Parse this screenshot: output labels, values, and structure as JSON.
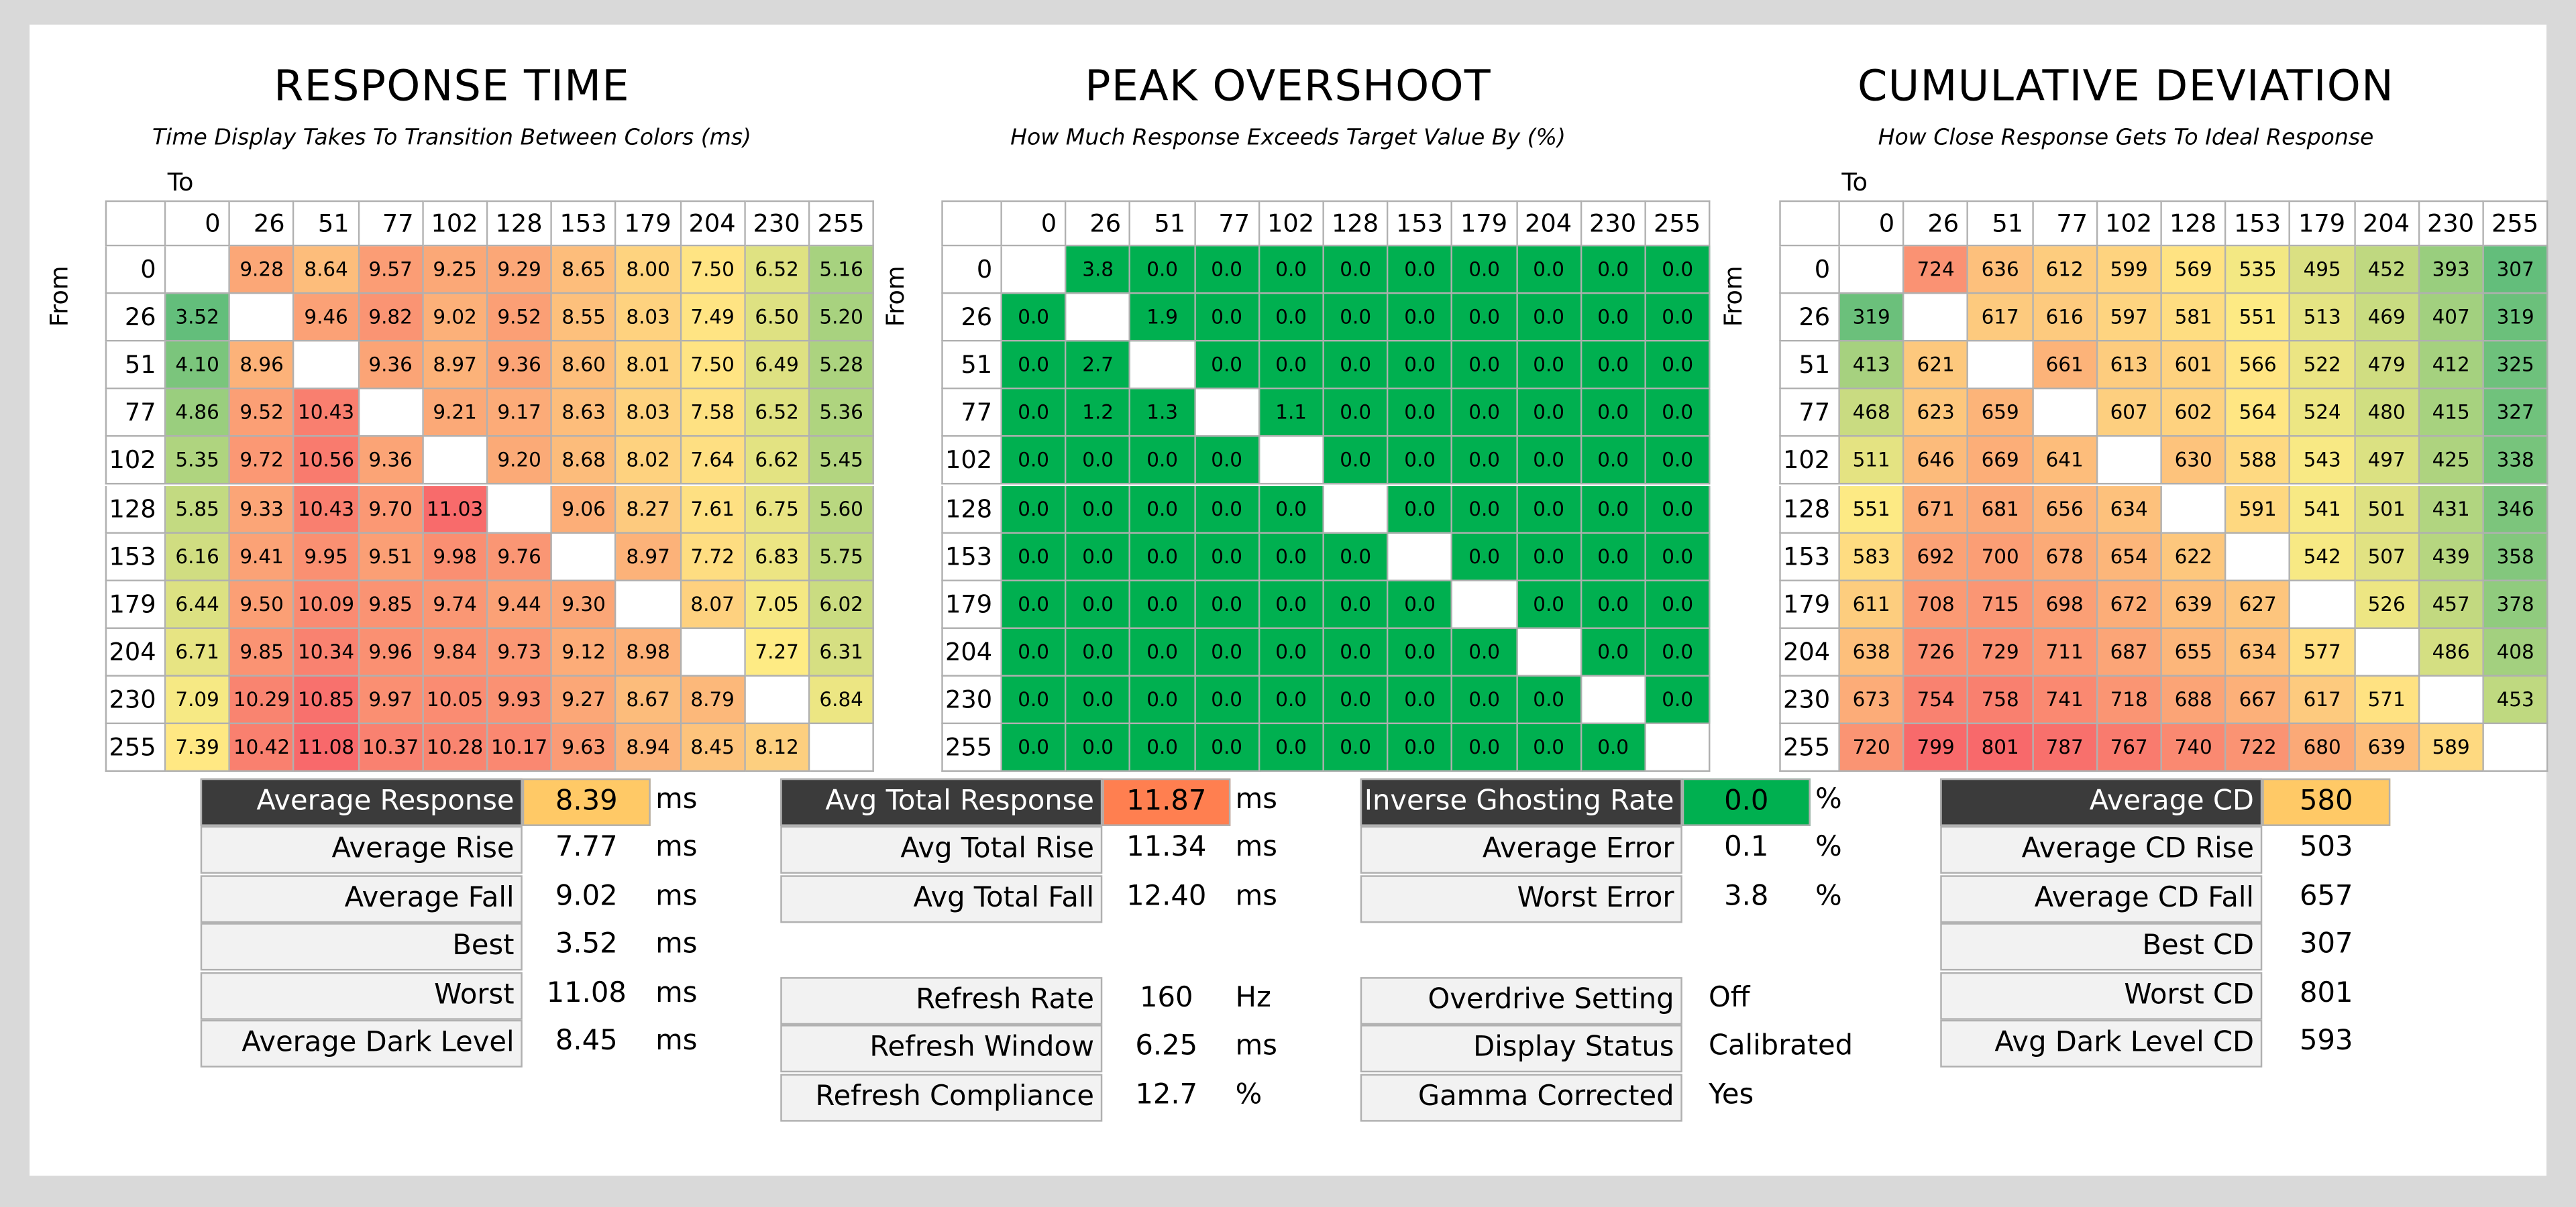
{
  "chart_data": [
    {
      "type": "heatmap",
      "title": "RESPONSE TIME",
      "subtitle": "Time Display Takes To Transition Between Colors (ms)",
      "xlabel": "To",
      "ylabel": "From",
      "x_categories": [
        "0",
        "26",
        "51",
        "77",
        "102",
        "128",
        "153",
        "179",
        "204",
        "230",
        "255"
      ],
      "y_categories": [
        "0",
        "26",
        "51",
        "77",
        "102",
        "128",
        "153",
        "179",
        "204",
        "230",
        "255"
      ],
      "values": [
        [
          null,
          "9.28",
          "8.64",
          "9.57",
          "9.25",
          "9.29",
          "8.65",
          "8.00",
          "7.50",
          "6.52",
          "5.16"
        ],
        [
          "3.52",
          null,
          "9.46",
          "9.82",
          "9.02",
          "9.52",
          "8.55",
          "8.03",
          "7.49",
          "6.50",
          "5.20"
        ],
        [
          "4.10",
          "8.96",
          null,
          "9.36",
          "8.97",
          "9.36",
          "8.60",
          "8.01",
          "7.50",
          "6.49",
          "5.28"
        ],
        [
          "4.86",
          "9.52",
          "10.43",
          null,
          "9.21",
          "9.17",
          "8.63",
          "8.03",
          "7.58",
          "6.52",
          "5.36"
        ],
        [
          "5.35",
          "9.72",
          "10.56",
          "9.36",
          null,
          "9.20",
          "8.68",
          "8.02",
          "7.64",
          "6.62",
          "5.45"
        ],
        [
          "5.85",
          "9.33",
          "10.43",
          "9.70",
          "11.03",
          null,
          "9.06",
          "8.27",
          "7.61",
          "6.75",
          "5.60"
        ],
        [
          "6.16",
          "9.41",
          "9.95",
          "9.51",
          "9.98",
          "9.76",
          null,
          "8.97",
          "7.72",
          "6.83",
          "5.75"
        ],
        [
          "6.44",
          "9.50",
          "10.09",
          "9.85",
          "9.74",
          "9.44",
          "9.30",
          null,
          "8.07",
          "7.05",
          "6.02"
        ],
        [
          "6.71",
          "9.85",
          "10.34",
          "9.96",
          "9.84",
          "9.73",
          "9.12",
          "8.98",
          null,
          "7.27",
          "6.31"
        ],
        [
          "7.09",
          "10.29",
          "10.85",
          "9.97",
          "10.05",
          "9.93",
          "9.27",
          "8.67",
          "8.79",
          null,
          "6.84"
        ],
        [
          "7.39",
          "10.42",
          "11.08",
          "10.37",
          "10.28",
          "10.17",
          "9.63",
          "8.94",
          "8.45",
          "8.12",
          null
        ]
      ],
      "color_min": 3.52,
      "color_max": 11.08
    },
    {
      "type": "heatmap",
      "title": "PEAK OVERSHOOT",
      "subtitle": "How Much Response Exceeds Target Value By (%)",
      "xlabel": "",
      "ylabel": "From",
      "x_categories": [
        "0",
        "26",
        "51",
        "77",
        "102",
        "128",
        "153",
        "179",
        "204",
        "230",
        "255"
      ],
      "y_categories": [
        "0",
        "26",
        "51",
        "77",
        "102",
        "128",
        "153",
        "179",
        "204",
        "230",
        "255"
      ],
      "values": [
        [
          null,
          "3.8",
          "0.0",
          "0.0",
          "0.0",
          "0.0",
          "0.0",
          "0.0",
          "0.0",
          "0.0",
          "0.0"
        ],
        [
          "0.0",
          null,
          "1.9",
          "0.0",
          "0.0",
          "0.0",
          "0.0",
          "0.0",
          "0.0",
          "0.0",
          "0.0"
        ],
        [
          "0.0",
          "2.7",
          null,
          "0.0",
          "0.0",
          "0.0",
          "0.0",
          "0.0",
          "0.0",
          "0.0",
          "0.0"
        ],
        [
          "0.0",
          "1.2",
          "1.3",
          null,
          "1.1",
          "0.0",
          "0.0",
          "0.0",
          "0.0",
          "0.0",
          "0.0"
        ],
        [
          "0.0",
          "0.0",
          "0.0",
          "0.0",
          null,
          "0.0",
          "0.0",
          "0.0",
          "0.0",
          "0.0",
          "0.0"
        ],
        [
          "0.0",
          "0.0",
          "0.0",
          "0.0",
          "0.0",
          null,
          "0.0",
          "0.0",
          "0.0",
          "0.0",
          "0.0"
        ],
        [
          "0.0",
          "0.0",
          "0.0",
          "0.0",
          "0.0",
          "0.0",
          null,
          "0.0",
          "0.0",
          "0.0",
          "0.0"
        ],
        [
          "0.0",
          "0.0",
          "0.0",
          "0.0",
          "0.0",
          "0.0",
          "0.0",
          null,
          "0.0",
          "0.0",
          "0.0"
        ],
        [
          "0.0",
          "0.0",
          "0.0",
          "0.0",
          "0.0",
          "0.0",
          "0.0",
          "0.0",
          null,
          "0.0",
          "0.0"
        ],
        [
          "0.0",
          "0.0",
          "0.0",
          "0.0",
          "0.0",
          "0.0",
          "0.0",
          "0.0",
          "0.0",
          null,
          "0.0"
        ],
        [
          "0.0",
          "0.0",
          "0.0",
          "0.0",
          "0.0",
          "0.0",
          "0.0",
          "0.0",
          "0.0",
          "0.0",
          null
        ]
      ],
      "uniform_color": "#00b050"
    },
    {
      "type": "heatmap",
      "title": "CUMULATIVE DEVIATION",
      "subtitle": "How Close Response Gets To Ideal Response",
      "xlabel": "To",
      "ylabel": "From",
      "x_categories": [
        "0",
        "26",
        "51",
        "77",
        "102",
        "128",
        "153",
        "179",
        "204",
        "230",
        "255"
      ],
      "y_categories": [
        "0",
        "26",
        "51",
        "77",
        "102",
        "128",
        "153",
        "179",
        "204",
        "230",
        "255"
      ],
      "values": [
        [
          null,
          "724",
          "636",
          "612",
          "599",
          "569",
          "535",
          "495",
          "452",
          "393",
          "307"
        ],
        [
          "319",
          null,
          "617",
          "616",
          "597",
          "581",
          "551",
          "513",
          "469",
          "407",
          "319"
        ],
        [
          "413",
          "621",
          null,
          "661",
          "613",
          "601",
          "566",
          "522",
          "479",
          "412",
          "325"
        ],
        [
          "468",
          "623",
          "659",
          null,
          "607",
          "602",
          "564",
          "524",
          "480",
          "415",
          "327"
        ],
        [
          "511",
          "646",
          "669",
          "641",
          null,
          "630",
          "588",
          "543",
          "497",
          "425",
          "338"
        ],
        [
          "551",
          "671",
          "681",
          "656",
          "634",
          null,
          "591",
          "541",
          "501",
          "431",
          "346"
        ],
        [
          "583",
          "692",
          "700",
          "678",
          "654",
          "622",
          null,
          "542",
          "507",
          "439",
          "358"
        ],
        [
          "611",
          "708",
          "715",
          "698",
          "672",
          "639",
          "627",
          null,
          "526",
          "457",
          "378"
        ],
        [
          "638",
          "726",
          "729",
          "711",
          "687",
          "655",
          "634",
          "577",
          null,
          "486",
          "408"
        ],
        [
          "673",
          "754",
          "758",
          "741",
          "718",
          "688",
          "667",
          "617",
          "571",
          null,
          "453"
        ],
        [
          "720",
          "799",
          "801",
          "787",
          "767",
          "740",
          "722",
          "680",
          "639",
          "589",
          null
        ]
      ],
      "color_min": 307,
      "color_max": 801
    }
  ],
  "colors": {
    "scale_low": "#63be7b",
    "scale_mid": "#ffeb84",
    "scale_high": "#f8696b",
    "highlight_orange": "#ffc966",
    "highlight_red": "#ff7f50",
    "highlight_green": "#00b050",
    "header_dark": "#3b3b3b"
  },
  "stats": {
    "response": [
      {
        "label": "Average Response",
        "value": "8.39",
        "unit": "ms",
        "dark": true,
        "hl": "highlight_orange"
      },
      {
        "label": "Average Rise",
        "value": "7.77",
        "unit": "ms"
      },
      {
        "label": "Average Fall",
        "value": "9.02",
        "unit": "ms"
      },
      {
        "label": "Best",
        "value": "3.52",
        "unit": "ms"
      },
      {
        "label": "Worst",
        "value": "11.08",
        "unit": "ms"
      },
      {
        "label": "Average Dark Level",
        "value": "8.45",
        "unit": "ms"
      }
    ],
    "total": [
      {
        "label": "Avg Total Response",
        "value": "11.87",
        "unit": "ms",
        "dark": true,
        "hl": "highlight_red"
      },
      {
        "label": "Avg Total Rise",
        "value": "11.34",
        "unit": "ms"
      },
      {
        "label": "Avg Total Fall",
        "value": "12.40",
        "unit": "ms"
      }
    ],
    "refresh": [
      {
        "label": "Refresh Rate",
        "value": "160",
        "unit": "Hz"
      },
      {
        "label": "Refresh Window",
        "value": "6.25",
        "unit": "ms"
      },
      {
        "label": "Refresh Compliance",
        "value": "12.7",
        "unit": "%"
      }
    ],
    "overshoot": [
      {
        "label": "Inverse Ghosting Rate",
        "value": "0.0",
        "unit": "%",
        "dark": true,
        "hl": "highlight_green"
      },
      {
        "label": "Average Error",
        "value": "0.1",
        "unit": "%"
      },
      {
        "label": "Worst Error",
        "value": "3.8",
        "unit": "%"
      }
    ],
    "settings": [
      {
        "label": "Overdrive Setting",
        "value": "Off",
        "unit": ""
      },
      {
        "label": "Display Status",
        "value": "Calibrated",
        "unit": ""
      },
      {
        "label": "Gamma Corrected",
        "value": "Yes",
        "unit": ""
      }
    ],
    "cd": [
      {
        "label": "Average CD",
        "value": "580",
        "unit": "",
        "dark": true,
        "hl": "highlight_orange"
      },
      {
        "label": "Average CD Rise",
        "value": "503",
        "unit": ""
      },
      {
        "label": "Average CD Fall",
        "value": "657",
        "unit": ""
      },
      {
        "label": "Best CD",
        "value": "307",
        "unit": ""
      },
      {
        "label": "Worst CD",
        "value": "801",
        "unit": ""
      },
      {
        "label": "Avg Dark Level CD",
        "value": "593",
        "unit": ""
      }
    ]
  }
}
